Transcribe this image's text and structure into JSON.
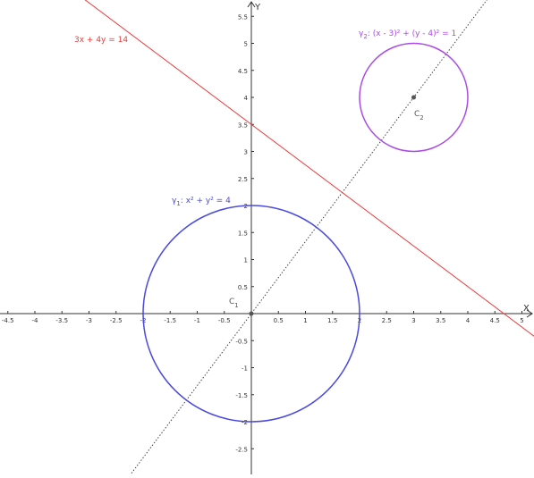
{
  "axes": {
    "x_name": "X",
    "y_name": "Y",
    "x_range": [
      -4.6,
      5.3
    ],
    "y_range": [
      -2.95,
      5.82
    ],
    "x_ticks": [
      {
        "value": -4.5,
        "label": "-4.5"
      },
      {
        "value": -4,
        "label": "-4"
      },
      {
        "value": -3.5,
        "label": "-3.5"
      },
      {
        "value": -3,
        "label": "-3"
      },
      {
        "value": -2.5,
        "label": "-2.5"
      },
      {
        "value": -2,
        "label": "-2"
      },
      {
        "value": -1.5,
        "label": "-1.5"
      },
      {
        "value": -1,
        "label": "-1"
      },
      {
        "value": -0.5,
        "label": "-0.5"
      },
      {
        "value": 0.5,
        "label": "0.5"
      },
      {
        "value": 1,
        "label": "1"
      },
      {
        "value": 1.5,
        "label": "1.5"
      },
      {
        "value": 2,
        "label": "2"
      },
      {
        "value": 2.5,
        "label": "2.5"
      },
      {
        "value": 3,
        "label": "3"
      },
      {
        "value": 3.5,
        "label": "3.5"
      },
      {
        "value": 4,
        "label": "4"
      },
      {
        "value": 4.5,
        "label": "4.5"
      },
      {
        "value": 5,
        "label": "5"
      }
    ],
    "y_ticks": [
      {
        "value": 5.5,
        "label": "5.5"
      },
      {
        "value": 5,
        "label": "5"
      },
      {
        "value": 4.5,
        "label": "4.5"
      },
      {
        "value": 4,
        "label": "4"
      },
      {
        "value": 3.5,
        "label": "3.5"
      },
      {
        "value": 3,
        "label": "3"
      },
      {
        "value": 2.5,
        "label": "2.5"
      },
      {
        "value": 2,
        "label": "2"
      },
      {
        "value": 1.5,
        "label": "1.5"
      },
      {
        "value": 1,
        "label": "1"
      },
      {
        "value": 0.5,
        "label": "0.5"
      },
      {
        "value": -0.5,
        "label": "-0.5"
      },
      {
        "value": -1,
        "label": "-1"
      },
      {
        "value": -1.5,
        "label": "-1.5"
      },
      {
        "value": -2,
        "label": "-2"
      },
      {
        "value": -2.5,
        "label": "-2.5"
      }
    ]
  },
  "circle1": {
    "center": [
      0,
      0
    ],
    "radius": 2,
    "color": "#4a4adf",
    "label_greek": "γ",
    "label_sub": "1",
    "label_eq": ": x² + y² = 4"
  },
  "circle2": {
    "center": [
      3,
      4
    ],
    "radius": 1,
    "color": "#a94be6",
    "label_greek": "γ",
    "label_sub": "2",
    "label_eq": ": (x - 3)² + (y - 4)² = 1"
  },
  "line": {
    "a": 3,
    "b": 4,
    "c": 14,
    "color": "#ee3b3b",
    "label": "3x + 4y = 14"
  },
  "center_line": {
    "through": [
      [
        0,
        0
      ],
      [
        3,
        4
      ]
    ],
    "color": "#444444"
  },
  "points": [
    {
      "name": "C",
      "sub": "1",
      "x": 0,
      "y": 0
    },
    {
      "name": "C",
      "sub": "2",
      "x": 3,
      "y": 4
    }
  ]
}
